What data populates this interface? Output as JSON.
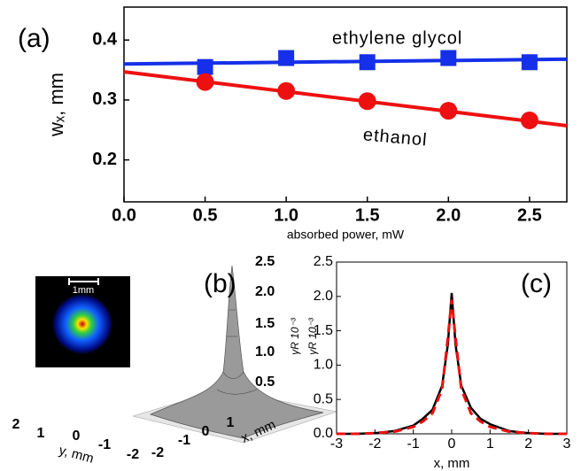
{
  "chart_data": [
    {
      "type": "scatter",
      "title": "(a)",
      "xlabel": "absorbed power, mW",
      "ylabel": "wₓ, mm",
      "xlim": [
        0,
        2.73
      ],
      "ylim": [
        0.13,
        0.455
      ],
      "xticks": [
        {
          "value": 0,
          "label": "0.0"
        },
        0.5,
        {
          "value": 1,
          "label": "1.0"
        },
        1.5,
        {
          "value": 2,
          "label": "2.0"
        },
        2.5
      ],
      "yticks": [
        0.2,
        0.3,
        0.4
      ],
      "x": [
        0.5,
        1,
        1.5,
        2,
        2.5
      ],
      "series": [
        {
          "name": "ethylene glycol",
          "color": "#1530e8",
          "marker": "square",
          "values": [
            0.355,
            0.37,
            0.363,
            0.37,
            0.363
          ]
        },
        {
          "name": "ethanol",
          "color": "#ee1010",
          "marker": "circle",
          "values": [
            0.33,
            0.315,
            0.298,
            0.282,
            0.266
          ]
        }
      ],
      "fits": [
        {
          "color": "#1530e8",
          "x": [
            0,
            2.73
          ],
          "values": [
            0.36,
            0.368
          ]
        },
        {
          "color": "#ee1010",
          "x": [
            0,
            2.73
          ],
          "values": [
            0.347,
            0.257
          ]
        }
      ]
    },
    {
      "type": "surface3d",
      "title": "(b)",
      "inset_label": "1mm",
      "xlabel": "x, mm",
      "ylabel": "y, mm",
      "zlabel": "γR 10⁻³",
      "xticks": [
        -2,
        -1,
        0,
        1
      ],
      "yticks": [
        2,
        1,
        0,
        -1,
        -2
      ],
      "zticks": [
        {
          "value": 0.5,
          "label": "0.5"
        },
        {
          "value": 1,
          "label": "1.0"
        },
        {
          "value": 1.5,
          "label": "1.5"
        },
        {
          "value": 2,
          "label": "2.0"
        },
        {
          "value": 2.5,
          "label": "2.5"
        }
      ]
    },
    {
      "type": "line",
      "title": "(c)",
      "xlabel": "x, mm",
      "ylabel": "γR 10⁻³",
      "xlim": [
        -3,
        3
      ],
      "ylim": [
        0,
        2.5
      ],
      "xticks": [
        -3,
        -2,
        -1,
        0,
        1,
        2,
        3
      ],
      "yticks": [
        {
          "value": 0,
          "label": "0.0"
        },
        0.5,
        {
          "value": 1,
          "label": "1.0"
        },
        1.5,
        {
          "value": 2,
          "label": "2.0"
        },
        2.5
      ],
      "x": [
        -3,
        -2.5,
        -2,
        -1.5,
        -1,
        -0.75,
        -0.5,
        -0.25,
        -0.1,
        0,
        0.1,
        0.25,
        0.5,
        0.75,
        1,
        1.5,
        2,
        2.5,
        3
      ],
      "series": [
        {
          "color": "#000000",
          "dash": false,
          "values": [
            0,
            0,
            0.01,
            0.04,
            0.12,
            0.22,
            0.35,
            0.7,
            1.3,
            2.05,
            1.3,
            0.7,
            0.38,
            0.22,
            0.14,
            0.04,
            0.01,
            0,
            0
          ]
        },
        {
          "color": "#ee1010",
          "dash": true,
          "values": [
            0,
            0,
            0.01,
            0.03,
            0.1,
            0.18,
            0.3,
            0.65,
            1.4,
            1.95,
            1.4,
            0.65,
            0.3,
            0.18,
            0.1,
            0.03,
            0.01,
            0,
            0
          ]
        }
      ]
    }
  ]
}
